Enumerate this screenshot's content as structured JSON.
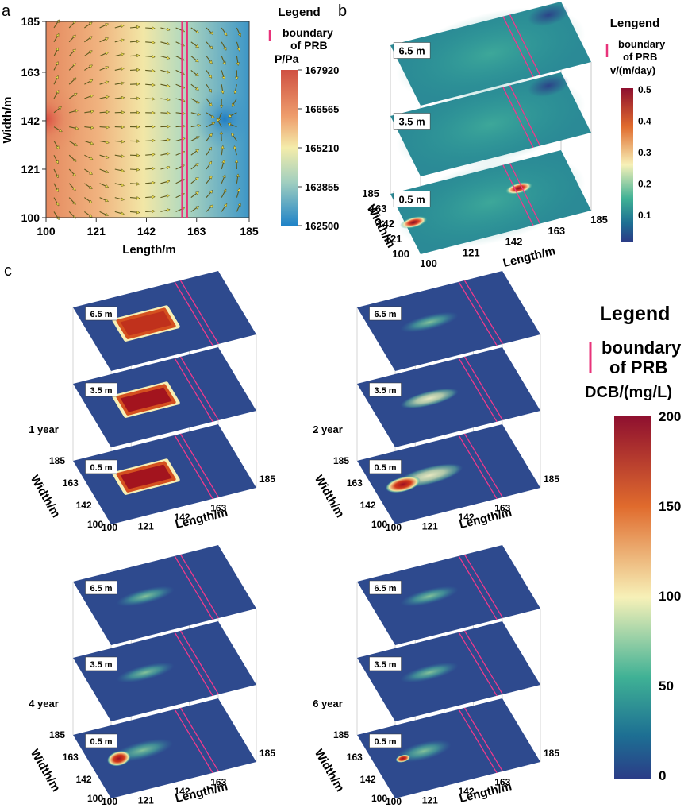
{
  "chart_data": [
    {
      "panel": "a",
      "type": "heatmap",
      "title": "",
      "xlabel": "Length/m",
      "ylabel": "Width/m",
      "x_ticks": [
        "100",
        "121",
        "142",
        "163",
        "185"
      ],
      "y_ticks": [
        "185",
        "163",
        "142",
        "121",
        "100"
      ],
      "xlim": [
        100,
        185
      ],
      "ylim": [
        100,
        185
      ],
      "prb_x": [
        157,
        159
      ],
      "pressure_field": {
        "high_source_point": [
          100,
          142
        ],
        "low_sink_point": [
          171,
          142
        ]
      },
      "legend": {
        "title": "Legend",
        "entry_line1": "boundary",
        "entry_line2": "of PRB",
        "colorbar_title": "P/Pa",
        "range": [
          162500,
          167920
        ],
        "ticks": [
          "167920",
          "166565",
          "165210",
          "163855",
          "162500"
        ]
      }
    },
    {
      "panel": "b",
      "type": "heatmap",
      "description_layers": [
        "6.5 m",
        "3.5 m",
        "0.5 m"
      ],
      "xlabel": "Length/m",
      "ylabel": "Width/m",
      "x_ticks": [
        "100",
        "121",
        "142",
        "163",
        "185"
      ],
      "y_ticks": [
        "100",
        "121",
        "142",
        "163",
        "185"
      ],
      "hotspots_0_5m": [
        [
          104,
          142,
          0.5
        ],
        [
          158,
          151,
          0.5
        ]
      ],
      "legend": {
        "title": "Lengend",
        "entry_line1": "boundary",
        "entry_line2": "of PRB",
        "colorbar_title": "v/(m/day)",
        "range": [
          0,
          0.5
        ],
        "ticks": [
          "0.5",
          "0.4",
          "0.3",
          "0.2",
          "0.1"
        ]
      }
    },
    {
      "panel": "c",
      "type": "heatmap",
      "xlabel": "Length/m",
      "ylabel": "Width/m",
      "x_ticks": [
        "100",
        "121",
        "142",
        "163",
        "185"
      ],
      "y_ticks": [
        "100",
        "142",
        "163",
        "185"
      ],
      "layers": [
        "6.5 m",
        "3.5 m",
        "0.5 m"
      ],
      "times": [
        {
          "label": "1 year",
          "peak_6_5m": 190,
          "peak_3_5m": 200,
          "peak_0_5m": 200
        },
        {
          "label": "2 year",
          "peak_6_5m": 45,
          "peak_3_5m": 90,
          "peak_0_5m": 200
        },
        {
          "label": "4 year",
          "peak_6_5m": 40,
          "peak_3_5m": 40,
          "peak_0_5m": 200
        },
        {
          "label": "6 year",
          "peak_6_5m": 25,
          "peak_3_5m": 30,
          "peak_0_5m": 200
        }
      ],
      "legend": {
        "title": "Legend",
        "entry_line1": "boundary",
        "entry_line2": "of PRB",
        "colorbar_title": "DCB/(mg/L)",
        "range": [
          0,
          200
        ],
        "ticks": [
          "200",
          "150",
          "100",
          "50",
          "0"
        ]
      }
    }
  ],
  "panel_labels": {
    "a": "a",
    "b": "b",
    "c": "c"
  }
}
